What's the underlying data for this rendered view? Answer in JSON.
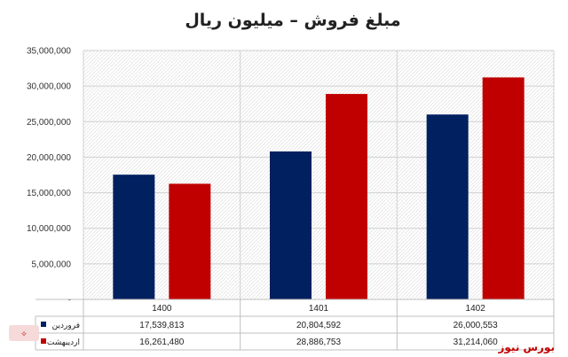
{
  "chart_data": {
    "type": "bar",
    "title": "مبلغ فروش – میلیون ریال",
    "categories": [
      "1400",
      "1401",
      "1402"
    ],
    "series": [
      {
        "name": "فروردین",
        "color": "#002060",
        "values": [
          17539813,
          20804592,
          26000553
        ],
        "labels": [
          "17,539,813",
          "20,804,592",
          "26,000,553"
        ]
      },
      {
        "name": "اردیبهشت",
        "color": "#c00000",
        "values": [
          16261480,
          28886753,
          31214060
        ],
        "labels": [
          "16,261,480",
          "28,886,753",
          "31,214,060"
        ]
      }
    ],
    "ylim": [
      0,
      35000000
    ],
    "yticks": [
      "-",
      "5,000,000",
      "10,000,000",
      "15,000,000",
      "20,000,000",
      "25,000,000",
      "30,000,000",
      "35,000,000"
    ],
    "grid": true,
    "legend": "data-table-left"
  },
  "brand": {
    "text": "بورس نیوز",
    "icon": "brand-logo-icon"
  }
}
